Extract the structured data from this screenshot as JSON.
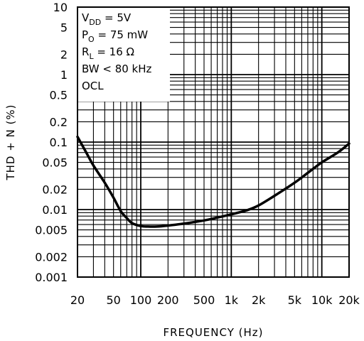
{
  "chart_data": {
    "type": "line",
    "title": "",
    "xlabel": "FREQUENCY (Hz)",
    "ylabel": "THD + N (%)",
    "x_scale": "log",
    "y_scale": "log",
    "xlim": [
      20,
      20000
    ],
    "ylim": [
      0.001,
      10
    ],
    "grid": true,
    "x_ticks": [
      {
        "value": 20,
        "label": "20"
      },
      {
        "value": 50,
        "label": "50"
      },
      {
        "value": 100,
        "label": "100"
      },
      {
        "value": 200,
        "label": "200"
      },
      {
        "value": 500,
        "label": "500"
      },
      {
        "value": 1000,
        "label": "1k"
      },
      {
        "value": 2000,
        "label": "2k"
      },
      {
        "value": 5000,
        "label": "5k"
      },
      {
        "value": 10000,
        "label": "10k"
      },
      {
        "value": 20000,
        "label": "20k"
      }
    ],
    "y_ticks": [
      {
        "value": 10,
        "label": "10"
      },
      {
        "value": 5,
        "label": "5"
      },
      {
        "value": 2,
        "label": "2"
      },
      {
        "value": 1,
        "label": "1"
      },
      {
        "value": 0.5,
        "label": "0.5"
      },
      {
        "value": 0.2,
        "label": "0.2"
      },
      {
        "value": 0.1,
        "label": "0.1"
      },
      {
        "value": 0.05,
        "label": "0.05"
      },
      {
        "value": 0.02,
        "label": "0.02"
      },
      {
        "value": 0.01,
        "label": "0.01"
      },
      {
        "value": 0.005,
        "label": "0.005"
      },
      {
        "value": 0.002,
        "label": "0.002"
      },
      {
        "value": 0.001,
        "label": "0.001"
      }
    ],
    "conditions": [
      {
        "main": "V",
        "sub": "DD",
        "rest": " = 5V"
      },
      {
        "main": "P",
        "sub": "O",
        "rest": " = 75 mW"
      },
      {
        "main": "R",
        "sub": "L",
        "rest": " = 16 Ω"
      },
      {
        "main": "BW < 80 kHz",
        "sub": "",
        "rest": ""
      },
      {
        "main": "OCL",
        "sub": "",
        "rest": ""
      }
    ],
    "series": [
      {
        "x": [
          20,
          25,
          30,
          40,
          50,
          60,
          70,
          80,
          100,
          120,
          150,
          200,
          300,
          500,
          700,
          1000,
          1500,
          2000,
          3000,
          5000,
          7000,
          10000,
          15000,
          20000
        ],
        "y": [
          0.12,
          0.07,
          0.045,
          0.025,
          0.015,
          0.0095,
          0.0075,
          0.0063,
          0.0057,
          0.0056,
          0.0056,
          0.0058,
          0.0062,
          0.0069,
          0.0076,
          0.0085,
          0.0098,
          0.0115,
          0.016,
          0.025,
          0.035,
          0.05,
          0.07,
          0.095
        ]
      }
    ]
  }
}
